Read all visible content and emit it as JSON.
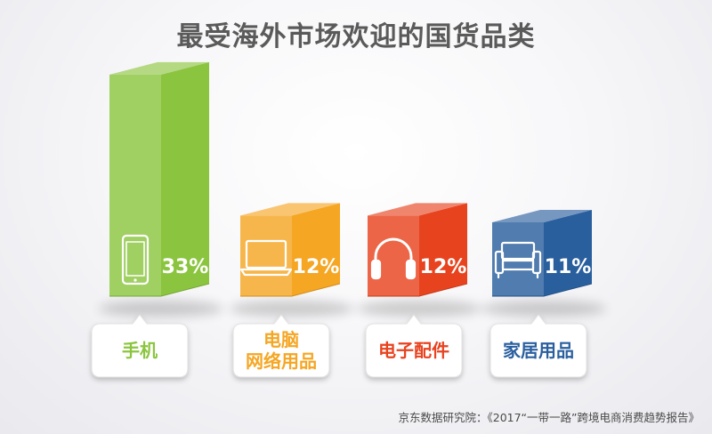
{
  "chart_data": {
    "type": "bar",
    "title": "最受海外市场欢迎的国货品类",
    "categories": [
      "手机",
      "电脑\n网络用品",
      "电子配件",
      "家居用品"
    ],
    "values": [
      33,
      12,
      12,
      11
    ],
    "value_labels": [
      "33%",
      "12%",
      "12%",
      "11%"
    ],
    "unit": "%",
    "colors": [
      "#8bc53f",
      "#f5a623",
      "#e8431f",
      "#2a5f9e"
    ],
    "icons": [
      "phone-icon",
      "laptop-icon",
      "headphones-icon",
      "sofa-icon"
    ]
  },
  "source": "京东数据研究院：《2017“一带一路”跨境电商消费趋势报告》"
}
